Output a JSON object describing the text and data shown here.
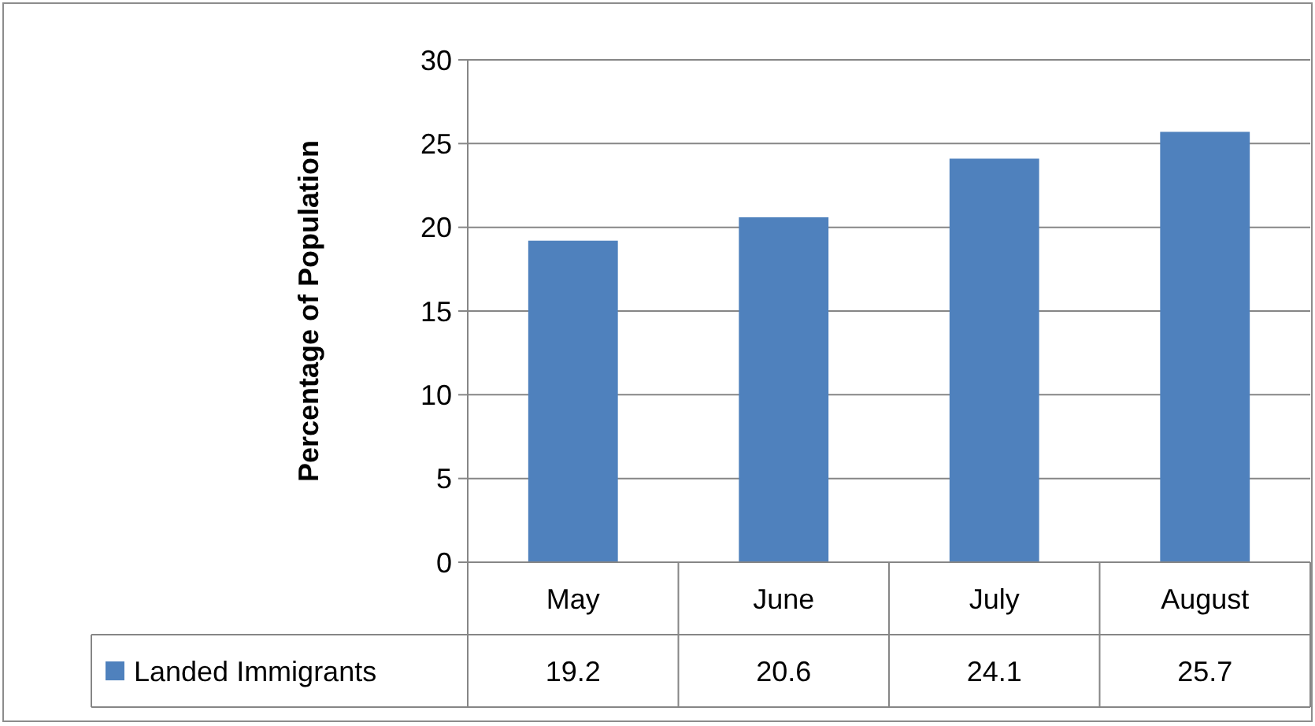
{
  "chart_data": {
    "type": "bar",
    "ylabel": "Percentage of Population",
    "categories": [
      "May",
      "June",
      "July",
      "August"
    ],
    "series": [
      {
        "name": "Landed Immigrants",
        "color": "#4f81bd",
        "values": [
          19.2,
          20.6,
          24.1,
          25.7
        ]
      }
    ],
    "ylim": [
      0,
      30
    ],
    "yticks": [
      0,
      5,
      10,
      15,
      20,
      25,
      30
    ],
    "grid": "y",
    "data_labels": true,
    "legend": "bottom"
  }
}
